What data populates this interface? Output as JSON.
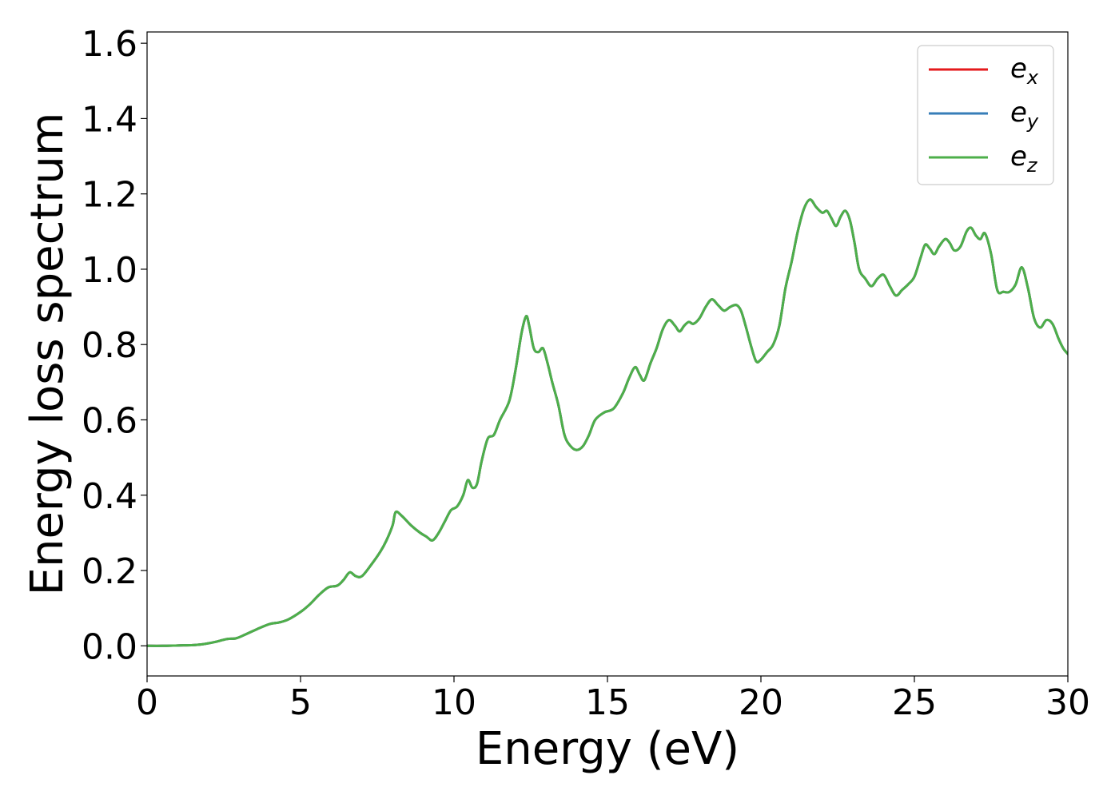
{
  "chart_data": {
    "type": "line",
    "title": "",
    "xlabel": "Energy (eV)",
    "ylabel": "Energy loss spectrum",
    "xlim": [
      0,
      30
    ],
    "ylim": [
      -0.08,
      1.63
    ],
    "xticks": [
      0,
      5,
      10,
      15,
      20,
      25,
      30
    ],
    "yticks": [
      "0.0",
      "0.2",
      "0.4",
      "0.6",
      "0.8",
      "1.0",
      "1.2",
      "1.4",
      "1.6"
    ],
    "grid": false,
    "legend_position": "top-right",
    "x": [
      0,
      0.5,
      1,
      1.5,
      1.8,
      2.2,
      2.6,
      2.9,
      3.2,
      3.6,
      4,
      4.3,
      4.6,
      5,
      5.3,
      5.6,
      5.9,
      6.2,
      6.4,
      6.6,
      6.8,
      7.0,
      7.3,
      7.6,
      7.8,
      8.0,
      8.1,
      8.3,
      8.6,
      8.9,
      9.1,
      9.3,
      9.5,
      9.7,
      9.9,
      10.1,
      10.3,
      10.45,
      10.6,
      10.75,
      10.9,
      11.1,
      11.3,
      11.5,
      11.8,
      12.0,
      12.2,
      12.35,
      12.45,
      12.6,
      12.75,
      12.9,
      13.05,
      13.2,
      13.4,
      13.6,
      13.8,
      14.0,
      14.2,
      14.4,
      14.6,
      14.9,
      15.2,
      15.5,
      15.7,
      15.9,
      16.05,
      16.2,
      16.4,
      16.6,
      16.8,
      17.0,
      17.2,
      17.35,
      17.5,
      17.65,
      17.8,
      18.0,
      18.2,
      18.4,
      18.6,
      18.8,
      19.0,
      19.2,
      19.35,
      19.5,
      19.7,
      19.85,
      20.0,
      20.2,
      20.4,
      20.6,
      20.8,
      21.0,
      21.2,
      21.4,
      21.6,
      21.8,
      22.0,
      22.15,
      22.3,
      22.45,
      22.6,
      22.75,
      22.9,
      23.05,
      23.2,
      23.4,
      23.6,
      23.8,
      24.0,
      24.2,
      24.4,
      24.6,
      24.8,
      25.0,
      25.2,
      25.35,
      25.5,
      25.65,
      25.8,
      26.0,
      26.15,
      26.3,
      26.5,
      26.7,
      26.85,
      27.0,
      27.15,
      27.3,
      27.5,
      27.7,
      27.9,
      28.1,
      28.3,
      28.5,
      28.7,
      28.9,
      29.1,
      29.3,
      29.5,
      29.7,
      29.85,
      30.0
    ],
    "series": [
      {
        "name": "e_x",
        "legend_main": "e",
        "legend_sub": "x",
        "color": "#e41a1c",
        "values": [
          0,
          0,
          0.001,
          0.002,
          0.004,
          0.01,
          0.018,
          0.02,
          0.03,
          0.045,
          0.058,
          0.062,
          0.07,
          0.09,
          0.11,
          0.135,
          0.155,
          0.16,
          0.175,
          0.195,
          0.185,
          0.185,
          0.215,
          0.25,
          0.28,
          0.32,
          0.355,
          0.345,
          0.32,
          0.3,
          0.29,
          0.28,
          0.3,
          0.33,
          0.36,
          0.37,
          0.4,
          0.44,
          0.42,
          0.43,
          0.49,
          0.55,
          0.56,
          0.6,
          0.65,
          0.73,
          0.83,
          0.875,
          0.85,
          0.79,
          0.78,
          0.79,
          0.75,
          0.7,
          0.64,
          0.56,
          0.53,
          0.52,
          0.53,
          0.56,
          0.6,
          0.62,
          0.63,
          0.67,
          0.71,
          0.74,
          0.72,
          0.705,
          0.75,
          0.79,
          0.84,
          0.865,
          0.85,
          0.835,
          0.85,
          0.86,
          0.855,
          0.87,
          0.9,
          0.92,
          0.905,
          0.89,
          0.9,
          0.905,
          0.89,
          0.85,
          0.79,
          0.755,
          0.76,
          0.78,
          0.8,
          0.85,
          0.95,
          1.02,
          1.1,
          1.16,
          1.185,
          1.165,
          1.15,
          1.155,
          1.135,
          1.115,
          1.14,
          1.155,
          1.13,
          1.07,
          1.0,
          0.975,
          0.955,
          0.975,
          0.985,
          0.955,
          0.93,
          0.945,
          0.96,
          0.98,
          1.03,
          1.065,
          1.055,
          1.04,
          1.06,
          1.08,
          1.07,
          1.05,
          1.06,
          1.1,
          1.11,
          1.09,
          1.08,
          1.095,
          1.04,
          0.945,
          0.94,
          0.94,
          0.96,
          1.005,
          0.95,
          0.87,
          0.845,
          0.865,
          0.855,
          0.815,
          0.79,
          0.775
        ]
      },
      {
        "name": "e_y",
        "legend_main": "e",
        "legend_sub": "y",
        "color": "#377eb8",
        "values": [
          0,
          0,
          0.001,
          0.002,
          0.004,
          0.01,
          0.018,
          0.02,
          0.03,
          0.045,
          0.058,
          0.062,
          0.07,
          0.09,
          0.11,
          0.135,
          0.155,
          0.16,
          0.175,
          0.195,
          0.185,
          0.185,
          0.215,
          0.25,
          0.28,
          0.32,
          0.355,
          0.345,
          0.32,
          0.3,
          0.29,
          0.28,
          0.3,
          0.33,
          0.36,
          0.37,
          0.4,
          0.44,
          0.42,
          0.43,
          0.49,
          0.55,
          0.56,
          0.6,
          0.65,
          0.73,
          0.83,
          0.875,
          0.85,
          0.79,
          0.78,
          0.79,
          0.75,
          0.7,
          0.64,
          0.56,
          0.53,
          0.52,
          0.53,
          0.56,
          0.6,
          0.62,
          0.63,
          0.67,
          0.71,
          0.74,
          0.72,
          0.705,
          0.75,
          0.79,
          0.84,
          0.865,
          0.85,
          0.835,
          0.85,
          0.86,
          0.855,
          0.87,
          0.9,
          0.92,
          0.905,
          0.89,
          0.9,
          0.905,
          0.89,
          0.85,
          0.79,
          0.755,
          0.76,
          0.78,
          0.8,
          0.85,
          0.95,
          1.02,
          1.1,
          1.16,
          1.185,
          1.165,
          1.15,
          1.155,
          1.135,
          1.115,
          1.14,
          1.155,
          1.13,
          1.07,
          1.0,
          0.975,
          0.955,
          0.975,
          0.985,
          0.955,
          0.93,
          0.945,
          0.96,
          0.98,
          1.03,
          1.065,
          1.055,
          1.04,
          1.06,
          1.08,
          1.07,
          1.05,
          1.06,
          1.1,
          1.11,
          1.09,
          1.08,
          1.095,
          1.04,
          0.945,
          0.94,
          0.94,
          0.96,
          1.005,
          0.95,
          0.87,
          0.845,
          0.865,
          0.855,
          0.815,
          0.79,
          0.775
        ]
      },
      {
        "name": "e_z",
        "legend_main": "e",
        "legend_sub": "z",
        "color": "#4daf4a",
        "values": [
          0,
          0,
          0.001,
          0.002,
          0.004,
          0.01,
          0.018,
          0.02,
          0.03,
          0.045,
          0.058,
          0.062,
          0.07,
          0.09,
          0.11,
          0.135,
          0.155,
          0.16,
          0.175,
          0.195,
          0.185,
          0.185,
          0.215,
          0.25,
          0.28,
          0.32,
          0.355,
          0.345,
          0.32,
          0.3,
          0.29,
          0.28,
          0.3,
          0.33,
          0.36,
          0.37,
          0.4,
          0.44,
          0.42,
          0.43,
          0.49,
          0.55,
          0.56,
          0.6,
          0.65,
          0.73,
          0.83,
          0.875,
          0.85,
          0.79,
          0.78,
          0.79,
          0.75,
          0.7,
          0.64,
          0.56,
          0.53,
          0.52,
          0.53,
          0.56,
          0.6,
          0.62,
          0.63,
          0.67,
          0.71,
          0.74,
          0.72,
          0.705,
          0.75,
          0.79,
          0.84,
          0.865,
          0.85,
          0.835,
          0.85,
          0.86,
          0.855,
          0.87,
          0.9,
          0.92,
          0.905,
          0.89,
          0.9,
          0.905,
          0.89,
          0.85,
          0.79,
          0.755,
          0.76,
          0.78,
          0.8,
          0.85,
          0.95,
          1.02,
          1.1,
          1.16,
          1.185,
          1.165,
          1.15,
          1.155,
          1.135,
          1.115,
          1.14,
          1.155,
          1.13,
          1.07,
          1.0,
          0.975,
          0.955,
          0.975,
          0.985,
          0.955,
          0.93,
          0.945,
          0.96,
          0.98,
          1.03,
          1.065,
          1.055,
          1.04,
          1.06,
          1.08,
          1.07,
          1.05,
          1.06,
          1.1,
          1.11,
          1.09,
          1.08,
          1.095,
          1.04,
          0.945,
          0.94,
          0.94,
          0.96,
          1.005,
          0.95,
          0.87,
          0.845,
          0.865,
          0.855,
          0.815,
          0.79,
          0.775
        ]
      }
    ]
  }
}
